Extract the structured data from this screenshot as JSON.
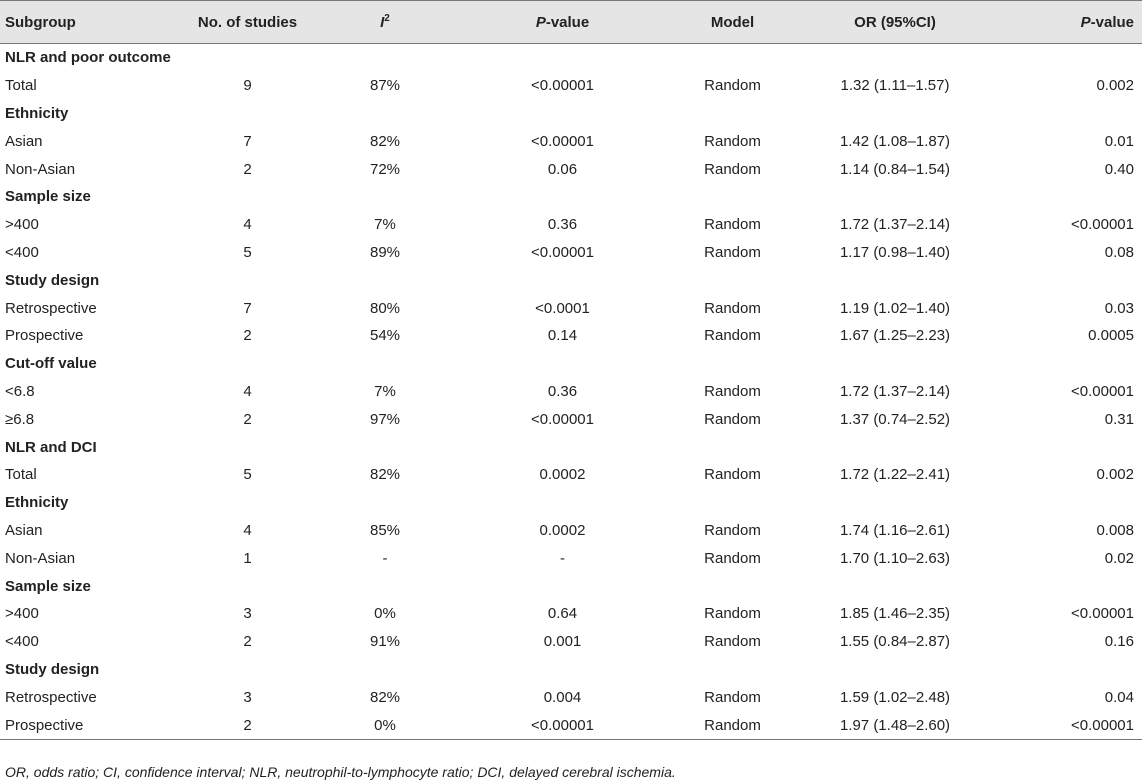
{
  "headers": {
    "subgroup": "Subgroup",
    "n_studies": "No. of studies",
    "i2_base": "I",
    "i2_sup": "2",
    "pvalue_p": "P",
    "pvalue_rest": "-value",
    "model": "Model",
    "or": "OR (95%CI)",
    "pvalue2_p": "P",
    "pvalue2_rest": "-value"
  },
  "rows": [
    {
      "type": "section",
      "label": "NLR and poor outcome"
    },
    {
      "type": "data",
      "label": "Total",
      "n": "9",
      "i2": "87%",
      "p": "<0.00001",
      "model": "Random",
      "or": "1.32 (1.11–1.57)",
      "p2": "0.002"
    },
    {
      "type": "section",
      "label": "Ethnicity"
    },
    {
      "type": "data",
      "label": "Asian",
      "n": "7",
      "i2": "82%",
      "p": "<0.00001",
      "model": "Random",
      "or": "1.42 (1.08–1.87)",
      "p2": "0.01"
    },
    {
      "type": "data",
      "label": "Non-Asian",
      "n": "2",
      "i2": "72%",
      "p": "0.06",
      "model": "Random",
      "or": "1.14 (0.84–1.54)",
      "p2": "0.40"
    },
    {
      "type": "section",
      "label": "Sample size"
    },
    {
      "type": "data",
      "label": ">400",
      "n": "4",
      "i2": "7%",
      "p": "0.36",
      "model": "Random",
      "or": "1.72 (1.37–2.14)",
      "p2": "<0.00001"
    },
    {
      "type": "data",
      "label": "<400",
      "n": "5",
      "i2": "89%",
      "p": "<0.00001",
      "model": "Random",
      "or": "1.17 (0.98–1.40)",
      "p2": "0.08"
    },
    {
      "type": "section",
      "label": "Study design"
    },
    {
      "type": "data",
      "label": "Retrospective",
      "n": "7",
      "i2": "80%",
      "p": "<0.0001",
      "model": "Random",
      "or": "1.19 (1.02–1.40)",
      "p2": "0.03"
    },
    {
      "type": "data",
      "label": "Prospective",
      "n": "2",
      "i2": "54%",
      "p": "0.14",
      "model": "Random",
      "or": "1.67 (1.25–2.23)",
      "p2": "0.0005"
    },
    {
      "type": "section",
      "label": "Cut-off value"
    },
    {
      "type": "data",
      "label": "<6.8",
      "n": "4",
      "i2": "7%",
      "p": "0.36",
      "model": "Random",
      "or": "1.72 (1.37–2.14)",
      "p2": "<0.00001"
    },
    {
      "type": "data",
      "label": "≥6.8",
      "n": "2",
      "i2": "97%",
      "p": "<0.00001",
      "model": "Random",
      "or": "1.37 (0.74–2.52)",
      "p2": "0.31"
    },
    {
      "type": "section",
      "label": "NLR and DCI"
    },
    {
      "type": "data",
      "label": "Total",
      "n": "5",
      "i2": "82%",
      "p": "0.0002",
      "model": "Random",
      "or": "1.72 (1.22–2.41)",
      "p2": "0.002"
    },
    {
      "type": "section",
      "label": "Ethnicity"
    },
    {
      "type": "data",
      "label": "Asian",
      "n": "4",
      "i2": "85%",
      "p": "0.0002",
      "model": "Random",
      "or": "1.74 (1.16–2.61)",
      "p2": "0.008"
    },
    {
      "type": "data",
      "label": "Non-Asian",
      "n": "1",
      "i2": "-",
      "p": "-",
      "model": "Random",
      "or": "1.70 (1.10–2.63)",
      "p2": "0.02"
    },
    {
      "type": "section",
      "label": "Sample size"
    },
    {
      "type": "data",
      "label": ">400",
      "n": "3",
      "i2": "0%",
      "p": "0.64",
      "model": "Random",
      "or": "1.85 (1.46–2.35)",
      "p2": "<0.00001"
    },
    {
      "type": "data",
      "label": "<400",
      "n": "2",
      "i2": "91%",
      "p": "0.001",
      "model": "Random",
      "or": "1.55 (0.84–2.87)",
      "p2": "0.16"
    },
    {
      "type": "section",
      "label": "Study design"
    },
    {
      "type": "data",
      "label": "Retrospective",
      "n": "3",
      "i2": "82%",
      "p": "0.004",
      "model": "Random",
      "or": "1.59 (1.02–2.48)",
      "p2": "0.04"
    },
    {
      "type": "data",
      "label": "Prospective",
      "n": "2",
      "i2": "0%",
      "p": "<0.00001",
      "model": "Random",
      "or": "1.97 (1.48–2.60)",
      "p2": "<0.00001"
    }
  ],
  "footnote": "OR, odds ratio; CI, confidence interval; NLR, neutrophil-to-lymphocyte ratio; DCI, delayed cerebral ischemia."
}
